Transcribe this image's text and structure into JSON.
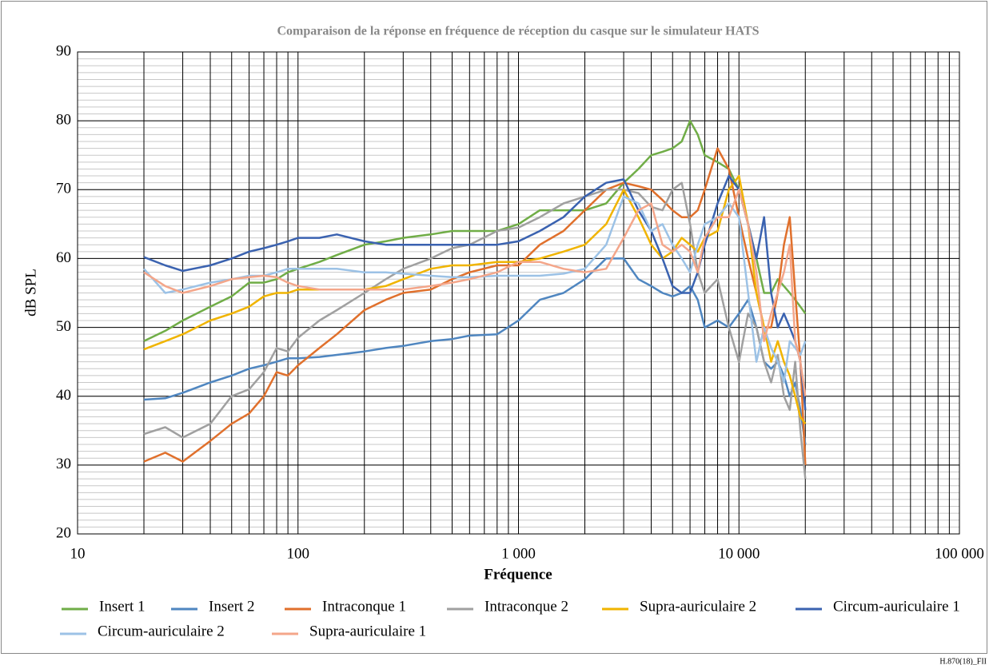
{
  "chart_data": {
    "type": "line",
    "title": "Comparaison de la réponse en fréquence de réception du casque sur le simulateur HATS",
    "x_label": "Fréquence",
    "y_label": "dB SPL",
    "footer": "H.870(18)_FII",
    "xscale": "log",
    "grid": true,
    "minor_grid": true,
    "legend": "bottom",
    "xlim": [
      10,
      100000
    ],
    "ylim": [
      20,
      90
    ],
    "xticks": [
      10,
      100,
      {
        "value": 1000,
        "label": "1 000"
      },
      {
        "value": 10000,
        "label": "10 000"
      },
      {
        "value": 100000,
        "label": "100 000"
      }
    ],
    "xminorticks": [
      20,
      30,
      40,
      50,
      60,
      70,
      80,
      90,
      200,
      300,
      400,
      500,
      600,
      700,
      800,
      900,
      2000,
      3000,
      4000,
      5000,
      6000,
      7000,
      8000,
      9000,
      20000,
      30000,
      40000,
      50000,
      60000,
      70000,
      80000,
      90000
    ],
    "yticks": [
      20,
      30,
      40,
      50,
      60,
      70,
      80,
      90
    ],
    "yminor_step": 1,
    "x": [
      20,
      25,
      30,
      40,
      50,
      60,
      70,
      80,
      90,
      100,
      125,
      150,
      200,
      250,
      300,
      400,
      500,
      600,
      800,
      1000,
      1250,
      1600,
      2000,
      2500,
      3000,
      3500,
      4000,
      4500,
      5000,
      5500,
      6000,
      6500,
      7000,
      8000,
      9000,
      10000,
      11000,
      12000,
      13000,
      14000,
      15000,
      16000,
      17000,
      18000,
      19000,
      20000
    ],
    "series": [
      {
        "name": "Insert 1",
        "color": "#70ad47",
        "values": [
          48,
          49.5,
          51,
          53,
          54.5,
          56.5,
          56.5,
          57,
          58,
          58.5,
          59.5,
          60.5,
          62,
          62.5,
          63,
          63.5,
          64,
          64,
          64,
          65,
          67,
          67,
          67,
          68,
          71,
          73,
          75,
          75.5,
          76,
          77,
          80,
          78,
          75,
          74,
          73,
          70,
          65,
          60,
          55,
          55,
          57,
          56,
          55,
          54,
          53,
          52
        ]
      },
      {
        "name": "Insert 2",
        "color": "#4f86c0",
        "values": [
          39.5,
          39.7,
          40.5,
          42,
          43,
          44,
          44.5,
          45,
          45.5,
          45.5,
          45.7,
          46,
          46.5,
          47,
          47.3,
          48,
          48.3,
          48.8,
          49,
          51,
          54,
          55,
          57,
          60,
          60,
          57,
          56,
          55,
          54.5,
          55,
          56,
          54,
          50,
          51,
          50,
          52,
          54,
          50,
          45,
          44,
          45,
          43,
          40,
          42,
          38,
          33
        ]
      },
      {
        "name": "Intraconque 1",
        "color": "#e0702c",
        "values": [
          30.5,
          31.8,
          30.5,
          33.5,
          36,
          37.5,
          40,
          43.5,
          43,
          44.5,
          47,
          49,
          52.5,
          54,
          55,
          55.5,
          57,
          58,
          59,
          59,
          62,
          64,
          67,
          70,
          71,
          70.5,
          70,
          68.5,
          67,
          66,
          66,
          67,
          70,
          76,
          73,
          66,
          60,
          55,
          50,
          50,
          55,
          62,
          66,
          55,
          45,
          30
        ]
      },
      {
        "name": "Intraconque 2",
        "color": "#a0a0a0",
        "values": [
          34.5,
          35.5,
          34,
          36,
          40,
          41,
          43.5,
          47,
          46.5,
          48.5,
          51,
          52.5,
          55,
          57,
          58.5,
          60,
          61.5,
          62,
          64,
          64.5,
          66,
          68,
          69,
          70,
          70,
          69.5,
          67.5,
          67,
          70,
          71,
          65,
          58,
          55,
          57,
          50,
          45,
          52,
          50,
          45,
          42,
          46,
          40,
          38,
          45,
          35,
          28
        ]
      },
      {
        "name": "Supra-auriculaire 2",
        "color": "#f0b400",
        "values": [
          46.8,
          48,
          49,
          51,
          52,
          53,
          54.5,
          55,
          55,
          55.5,
          55.5,
          55.5,
          55.5,
          56,
          57,
          58.5,
          59,
          59,
          59.5,
          59.5,
          60,
          61,
          62,
          65,
          70,
          66,
          62,
          60,
          61,
          63,
          62,
          61,
          63,
          64,
          70,
          72,
          65,
          55,
          50,
          45,
          48,
          45,
          43,
          40,
          37,
          36
        ]
      },
      {
        "name": "Circum-auriculaire 1",
        "color": "#3a62b0",
        "values": [
          60.2,
          59,
          58.2,
          59,
          60,
          61,
          61.5,
          62,
          62.5,
          63,
          63,
          63.5,
          62.5,
          62,
          62,
          62,
          62,
          62,
          62,
          62.5,
          64,
          66,
          69,
          71,
          71.5,
          67,
          64,
          60,
          56,
          55,
          55,
          58,
          62,
          68,
          72,
          70,
          65,
          60,
          66,
          55,
          50,
          52,
          50,
          48,
          45,
          38
        ]
      },
      {
        "name": "Circum-auriculaire 2",
        "color": "#9cc2e6",
        "values": [
          58.5,
          55,
          55.5,
          56.5,
          57,
          57.5,
          57.5,
          58,
          58.5,
          58.5,
          58.5,
          58.5,
          58,
          58,
          57.8,
          57.5,
          57.3,
          57.3,
          57.5,
          57.5,
          57.5,
          57.8,
          58.5,
          62,
          69,
          68,
          64,
          65,
          62,
          60,
          58,
          62,
          65,
          66,
          68,
          66,
          55,
          45,
          50,
          47,
          45,
          42,
          48,
          47,
          46,
          48
        ]
      },
      {
        "name": "Supra-auriculaire 1",
        "color": "#f4a68a",
        "values": [
          58,
          56,
          55,
          56,
          57,
          57.3,
          57.5,
          57.3,
          56.5,
          56,
          55.5,
          55.5,
          55.5,
          55.5,
          55.5,
          56,
          56.5,
          57,
          58,
          59.5,
          59.5,
          58.5,
          58,
          58.5,
          63,
          67,
          68,
          62,
          61,
          62,
          61,
          58,
          63,
          66,
          66,
          70,
          65,
          58,
          48,
          52,
          55,
          58,
          62,
          48,
          45,
          40
        ]
      }
    ]
  }
}
